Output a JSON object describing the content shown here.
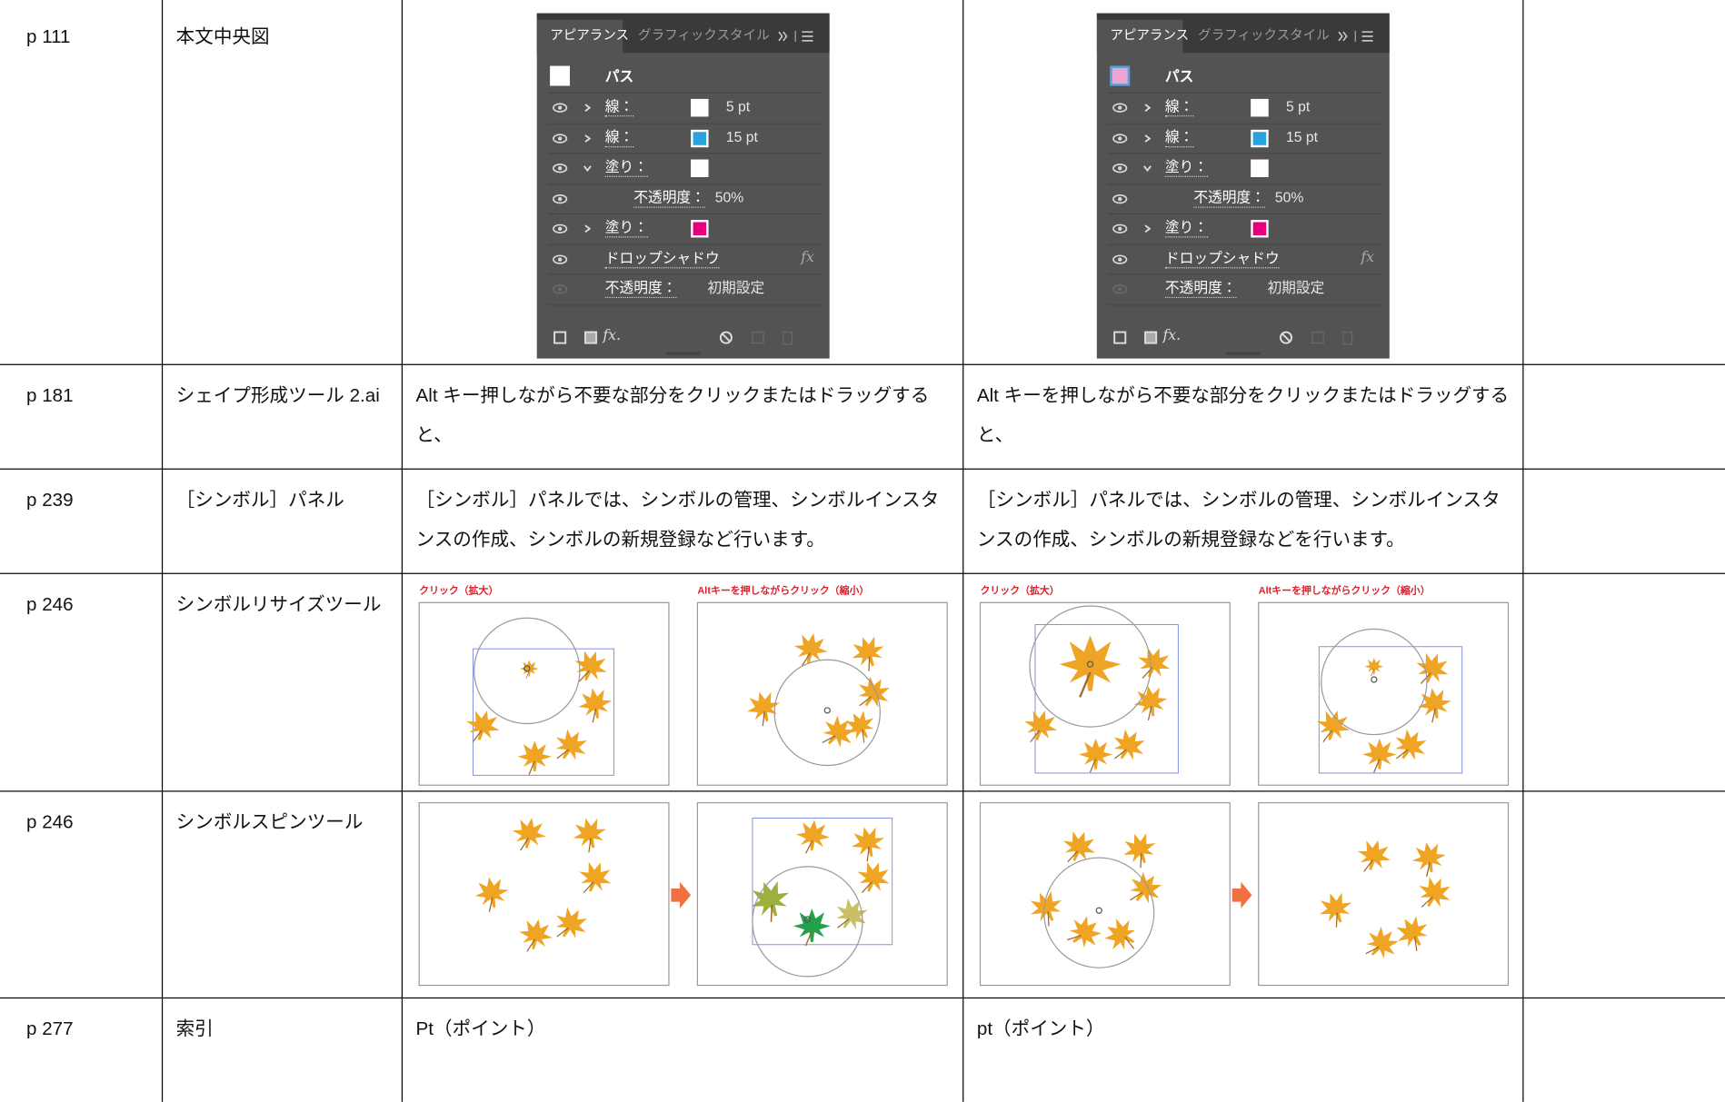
{
  "table": {
    "rows": [
      {
        "page": "p 111",
        "item": "本文中央図",
        "before": {
          "panel": {
            "tabs": [
              "アピアランス",
              "グラフィックスタイル"
            ],
            "object_swatch": "#ffffff",
            "object": "パス",
            "items": [
              {
                "label": "線：",
                "swatch": "#ffffff",
                "value": "5 pt"
              },
              {
                "label": "線：",
                "swatch": "#29a3e0",
                "value": "15 pt"
              },
              {
                "label": "塗り：",
                "swatch": "#ffffff"
              },
              {
                "label": "不透明度：",
                "value": "50%"
              },
              {
                "label": "塗り：",
                "swatch": "#e6007e"
              },
              {
                "label": "ドロップシャドウ",
                "icon": "fx"
              },
              {
                "label": "不透明度：",
                "value": "初期設定"
              }
            ],
            "toolbar_icon": "fx."
          }
        },
        "after": {
          "panel": {
            "tabs": [
              "アピアランス",
              "グラフィックスタイル"
            ],
            "object_swatch": "#e8a6d0",
            "object": "パス",
            "items": [
              {
                "label": "線：",
                "swatch": "#ffffff",
                "value": "5 pt"
              },
              {
                "label": "線：",
                "swatch": "#29a3e0",
                "value": "15 pt"
              },
              {
                "label": "塗り：",
                "swatch": "#ffffff"
              },
              {
                "label": "不透明度：",
                "value": "50%"
              },
              {
                "label": "塗り：",
                "swatch": "#e6007e"
              },
              {
                "label": "ドロップシャドウ",
                "icon": "fx"
              },
              {
                "label": "不透明度：",
                "value": "初期設定"
              }
            ],
            "toolbar_icon": "fx."
          }
        }
      },
      {
        "page": "p 181",
        "item": "シェイプ形成ツール 2.ai",
        "before": "Alt キー押しながら不要な部分をクリックまたはドラッグすると、",
        "after": "Alt キーを押しながら不要な部分をクリックまたはドラッグすると、"
      },
      {
        "page": "p 239",
        "item": "［シンボル］パネル",
        "before": "［シンボル］パネルでは、シンボルの管理、シンボルインスタンスの作成、シンボルの新規登録など行います。",
        "after": "［シンボル］パネルでは、シンボルの管理、シンボルインスタンスの作成、シンボルの新規登録などを行います。"
      },
      {
        "page": "p 246",
        "item": "シンボルリサイズツール",
        "before": {
          "captions": [
            "クリック（拡大）",
            "Altキーを押しながらクリック（縮小）"
          ]
        },
        "after": {
          "captions": [
            "クリック（拡大）",
            "Altキーを押しながらクリック（縮小）"
          ]
        }
      },
      {
        "page": "p 246",
        "item": "シンボルスピンツール"
      },
      {
        "page": "p 277",
        "item": "索引",
        "before": "Pt（ポイント）",
        "after": "pt（ポイント）"
      }
    ]
  }
}
